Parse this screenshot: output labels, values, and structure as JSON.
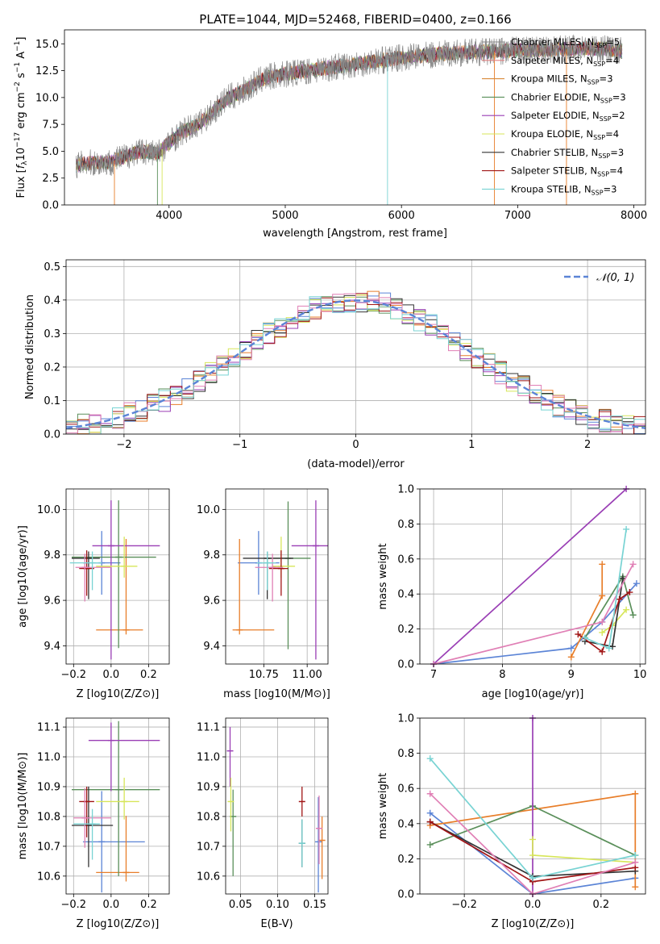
{
  "figure_title": "PLATE=1044, MJD=52468, FIBERID=0400, z=0.166",
  "series_colors": [
    "#5b84d6",
    "#e87e2a",
    "#5a8f5a",
    "#9a3fb5",
    "#d7e65a",
    "#333333",
    "#a01515",
    "#e07fb5",
    "#78d3d3"
  ],
  "chart_data": [
    {
      "id": "spectrum",
      "type": "line",
      "xlabel": "wavelength [Angstrom, rest frame]",
      "ylabel_parts": [
        "Flux [",
        "f",
        "λ",
        "10",
        "−17",
        " erg cm",
        "−2",
        " s",
        "−1",
        " A",
        "−1",
        "]"
      ],
      "xlim": [
        3100,
        8100
      ],
      "ylim": [
        0,
        16.3
      ],
      "xticks": [
        4000,
        5000,
        6000,
        7000,
        8000
      ],
      "yticks": [
        0.0,
        2.5,
        5.0,
        7.5,
        10.0,
        12.5,
        15.0
      ],
      "grid": false,
      "legend_position": "top-right",
      "data_curve": {
        "wavelength": [
          3200,
          3300,
          3400,
          3500,
          3600,
          3700,
          3800,
          3900,
          4000,
          4100,
          4200,
          4300,
          4400,
          4500,
          4600,
          4700,
          4800,
          4900,
          5000,
          5200,
          5400,
          5600,
          5800,
          6000,
          6200,
          6400,
          6600,
          6800,
          7000,
          7200,
          7400,
          7600,
          7800,
          7900
        ],
        "flux": [
          3.7,
          3.9,
          3.9,
          4.0,
          4.4,
          4.9,
          5.0,
          4.8,
          5.8,
          6.7,
          7.2,
          7.9,
          8.9,
          9.9,
          10.4,
          11.0,
          11.7,
          12.0,
          12.2,
          12.5,
          12.8,
          13.1,
          13.4,
          13.7,
          13.9,
          14.1,
          14.2,
          14.3,
          14.4,
          14.4,
          14.5,
          14.6,
          14.5,
          14.3
        ]
      },
      "legend": [
        {
          "label": "Chabrier MILES",
          "n": "5"
        },
        {
          "label": "Salpeter MILES",
          "n": "4"
        },
        {
          "label": "Kroupa MILES",
          "n": "3"
        },
        {
          "label": "Chabrier ELODIE",
          "n": "3"
        },
        {
          "label": "Salpeter ELODIE",
          "n": "2"
        },
        {
          "label": "Kroupa ELODIE",
          "n": "4"
        },
        {
          "label": "Chabrier STELIB",
          "n": "3"
        },
        {
          "label": "Salpeter STELIB",
          "n": "4"
        },
        {
          "label": "Kroupa STELIB",
          "n": "3"
        }
      ],
      "legend_colors": [
        "#888888",
        "#e07f7f",
        "#d98a3a",
        "#5a8f5a",
        "#9a3fb5",
        "#d7e65a",
        "#333333",
        "#a01515",
        "#78d3d3"
      ],
      "n_sub_prefix": "N",
      "n_sub": "SSP"
    },
    {
      "id": "residual-hist",
      "type": "histogram",
      "xlabel": "(data-model)/error",
      "ylabel": "Normed distribution",
      "xlim": [
        -2.5,
        2.5
      ],
      "ylim": [
        0,
        0.52
      ],
      "xticks": [
        -2,
        -1,
        0,
        1,
        2
      ],
      "xtick_labels": [
        "−2",
        "−1",
        "0",
        "1",
        "2"
      ],
      "yticks": [
        0.0,
        0.1,
        0.2,
        0.3,
        0.4,
        0.5
      ],
      "grid": true,
      "legend": "𝒩(0, 1)",
      "legend_position": "top-right",
      "bin_width": 0.1
    },
    {
      "id": "age-vs-z",
      "type": "errorbar",
      "xlabel": "Z [log10(Z/Z⊙)]",
      "ylabel": "age  [log10(age/yr)]",
      "xlim": [
        -0.24,
        0.31
      ],
      "ylim": [
        9.32,
        10.09
      ],
      "xticks": [
        -0.2,
        0.0,
        0.2
      ],
      "xtick_labels": [
        "−0.2",
        "0.0",
        "0.2"
      ],
      "yticks": [
        9.4,
        9.6,
        9.8,
        10.0
      ],
      "points": [
        {
          "x": -0.05,
          "xerr": [
            0.1,
            0.1
          ],
          "y": 9.765,
          "yerr": [
            0.14,
            0.14
          ],
          "color": "#5b84d6"
        },
        {
          "x": 0.08,
          "xerr": [
            0.16,
            0.09
          ],
          "y": 9.47,
          "yerr": [
            0.02,
            0.4
          ],
          "color": "#e87e2a"
        },
        {
          "x": 0.04,
          "xerr": [
            0.25,
            0.2
          ],
          "y": 9.79,
          "yerr": [
            0.4,
            0.25
          ],
          "color": "#5a8f5a"
        },
        {
          "x": 0.0,
          "xerr": [
            0.1,
            0.26
          ],
          "y": 9.84,
          "yerr": [
            0.5,
            0.2
          ],
          "color": "#9a3fb5"
        },
        {
          "x": 0.07,
          "xerr": [
            0.15,
            0.07
          ],
          "y": 9.75,
          "yerr": [
            0.05,
            0.13
          ],
          "color": "#d7e65a"
        },
        {
          "x": -0.12,
          "xerr": [
            0.09,
            0.06
          ],
          "y": 9.785,
          "yerr": [
            0.18,
            0.03
          ],
          "color": "#333333"
        },
        {
          "x": -0.13,
          "xerr": [
            0.04,
            0.04
          ],
          "y": 9.74,
          "yerr": [
            0.12,
            0.08
          ],
          "color": "#a01515"
        },
        {
          "x": -0.14,
          "xerr": [
            0.05,
            0.14
          ],
          "y": 9.745,
          "yerr": [
            0.15,
            0.06
          ],
          "color": "#e07fb5"
        },
        {
          "x": -0.1,
          "xerr": [
            0.12,
            0.05
          ],
          "y": 9.765,
          "yerr": [
            0.12,
            0.05
          ],
          "color": "#78d3d3"
        }
      ]
    },
    {
      "id": "age-vs-mass",
      "type": "errorbar",
      "xlabel": "mass [log10(M/M⊙)]",
      "ylabel": "",
      "xlim": [
        10.53,
        11.12
      ],
      "ylim": [
        9.32,
        10.09
      ],
      "xticks": [
        10.75,
        11.0
      ],
      "xtick_labels": [
        "10.75",
        "11.00"
      ],
      "yticks": [
        9.4,
        9.6,
        9.8,
        10.0
      ],
      "points": [
        {
          "x": 10.72,
          "xerr": [
            0.12,
            0.12
          ],
          "y": 9.765,
          "yerr": [
            0.14,
            0.14
          ],
          "color": "#5b84d6"
        },
        {
          "x": 10.61,
          "xerr": [
            0.04,
            0.2
          ],
          "y": 9.47,
          "yerr": [
            0.02,
            0.4
          ],
          "color": "#e87e2a"
        },
        {
          "x": 10.89,
          "xerr": [
            0.12,
            0.13
          ],
          "y": 9.785,
          "yerr": [
            0.4,
            0.25
          ],
          "color": "#5a8f5a"
        },
        {
          "x": 11.05,
          "xerr": [
            0.14,
            0.07
          ],
          "y": 9.84,
          "yerr": [
            0.5,
            0.2
          ],
          "color": "#9a3fb5"
        },
        {
          "x": 10.85,
          "xerr": [
            0.05,
            0.08
          ],
          "y": 9.75,
          "yerr": [
            0.05,
            0.13
          ],
          "color": "#d7e65a"
        },
        {
          "x": 10.77,
          "xerr": [
            0.14,
            0.15
          ],
          "y": 9.785,
          "yerr": [
            0.18,
            0.03
          ],
          "color": "#333333"
        },
        {
          "x": 10.85,
          "xerr": [
            0.07,
            0.04
          ],
          "y": 9.74,
          "yerr": [
            0.12,
            0.08
          ],
          "color": "#a01515"
        },
        {
          "x": 10.8,
          "xerr": [
            0.1,
            0.06
          ],
          "y": 9.745,
          "yerr": [
            0.15,
            0.06
          ],
          "color": "#e07fb5"
        },
        {
          "x": 10.77,
          "xerr": [
            0.06,
            0.05
          ],
          "y": 9.765,
          "yerr": [
            0.12,
            0.05
          ],
          "color": "#78d3d3"
        }
      ]
    },
    {
      "id": "weight-vs-age",
      "type": "line",
      "xlabel": "age  [log10(age/yr)]",
      "ylabel": "mass weight",
      "xlim": [
        6.8,
        10.08
      ],
      "ylim": [
        0,
        1.0
      ],
      "xticks": [
        7,
        8,
        9,
        10
      ],
      "yticks": [
        0.0,
        0.2,
        0.4,
        0.6,
        0.8,
        1.0
      ],
      "series": [
        {
          "x": [
            7.0,
            9.0,
            9.45,
            9.95
          ],
          "y": [
            0.0,
            0.09,
            0.24,
            0.46
          ],
          "color": "#5b84d6",
          "marker": "+"
        },
        {
          "x": [
            9.0,
            9.45,
            9.45
          ],
          "y": [
            0.04,
            0.39,
            0.57
          ],
          "color": "#e87e2a",
          "marker": "+"
        },
        {
          "x": [
            9.2,
            9.75,
            9.9
          ],
          "y": [
            0.15,
            0.5,
            0.28
          ],
          "color": "#5a8f5a",
          "marker": "+"
        },
        {
          "x": [
            7.0,
            9.8
          ],
          "y": [
            0.0,
            1.0
          ],
          "color": "#9a3fb5",
          "marker": "+"
        },
        {
          "x": [
            9.45,
            9.6,
            9.8
          ],
          "y": [
            0.18,
            0.22,
            0.31
          ],
          "color": "#d7e65a",
          "marker": "+"
        },
        {
          "x": [
            9.2,
            9.6,
            9.75
          ],
          "y": [
            0.13,
            0.1,
            0.49
          ],
          "color": "#333333",
          "marker": "+"
        },
        {
          "x": [
            9.1,
            9.45,
            9.7,
            9.85
          ],
          "y": [
            0.17,
            0.07,
            0.37,
            0.41
          ],
          "color": "#a01515",
          "marker": "+"
        },
        {
          "x": [
            7.0,
            9.45,
            9.9
          ],
          "y": [
            0.0,
            0.24,
            0.57
          ],
          "color": "#e07fb5",
          "marker": "+"
        },
        {
          "x": [
            9.2,
            9.55,
            9.8
          ],
          "y": [
            0.15,
            0.09,
            0.77
          ],
          "color": "#78d3d3",
          "marker": "+"
        }
      ]
    },
    {
      "id": "mass-vs-z",
      "type": "errorbar",
      "xlabel": "Z [log10(Z/Z⊙)]",
      "ylabel": "mass [log10(M/M⊙)]",
      "xlim": [
        -0.24,
        0.31
      ],
      "ylim": [
        10.54,
        11.13
      ],
      "xticks": [
        -0.2,
        0.0,
        0.2
      ],
      "xtick_labels": [
        "−0.2",
        "0.0",
        "0.2"
      ],
      "yticks": [
        10.6,
        10.7,
        10.8,
        10.9,
        11.0,
        11.1
      ],
      "points": [
        {
          "x": -0.05,
          "xerr": [
            0.1,
            0.23
          ],
          "y": 10.715,
          "yerr": [
            0.17,
            0.17
          ],
          "color": "#5b84d6"
        },
        {
          "x": 0.08,
          "xerr": [
            0.16,
            0.07
          ],
          "y": 10.612,
          "yerr": [
            0.03,
            0.19
          ],
          "color": "#e87e2a"
        },
        {
          "x": 0.04,
          "xerr": [
            0.25,
            0.22
          ],
          "y": 10.89,
          "yerr": [
            0.29,
            0.23
          ],
          "color": "#5a8f5a"
        },
        {
          "x": 0.0,
          "xerr": [
            0.12,
            0.26
          ],
          "y": 11.055,
          "yerr": [
            0.17,
            0.06
          ],
          "color": "#9a3fb5"
        },
        {
          "x": 0.07,
          "xerr": [
            0.15,
            0.08
          ],
          "y": 10.85,
          "yerr": [
            0.06,
            0.08
          ],
          "color": "#d7e65a"
        },
        {
          "x": -0.12,
          "xerr": [
            0.09,
            0.13
          ],
          "y": 10.77,
          "yerr": [
            0.14,
            0.13
          ],
          "color": "#333333"
        },
        {
          "x": -0.13,
          "xerr": [
            0.04,
            0.04
          ],
          "y": 10.85,
          "yerr": [
            0.12,
            0.05
          ],
          "color": "#a01515"
        },
        {
          "x": -0.14,
          "xerr": [
            0.06,
            0.14
          ],
          "y": 10.795,
          "yerr": [
            0.1,
            0.1
          ],
          "color": "#e07fb5"
        },
        {
          "x": -0.1,
          "xerr": [
            0.1,
            0.04
          ],
          "y": 10.775,
          "yerr": [
            0.12,
            0.05
          ],
          "color": "#78d3d3"
        }
      ]
    },
    {
      "id": "mass-vs-ebv",
      "type": "errorbar",
      "xlabel": "E(B-V)",
      "ylabel": "",
      "xlim": [
        0.03,
        0.168
      ],
      "ylim": [
        10.54,
        11.13
      ],
      "xticks": [
        0.05,
        0.1,
        0.15
      ],
      "xtick_labels": [
        "0.05",
        "0.10",
        "0.15"
      ],
      "yticks": [
        10.6,
        10.7,
        10.8,
        10.9,
        11.0,
        11.1
      ],
      "points": [
        {
          "x": 0.155,
          "xerr": [
            0,
            0
          ],
          "y": 10.715,
          "yerr": [
            0.17,
            0.15
          ],
          "color": "#5b84d6"
        },
        {
          "x": 0.16,
          "xerr": [
            0,
            0
          ],
          "y": 10.72,
          "yerr": [
            0.13,
            0.08
          ],
          "color": "#e87e2a"
        },
        {
          "x": 0.04,
          "xerr": [
            0,
            0
          ],
          "y": 10.8,
          "yerr": [
            0.2,
            0.09
          ],
          "color": "#5a8f5a"
        },
        {
          "x": 0.036,
          "xerr": [
            0,
            0
          ],
          "y": 11.02,
          "yerr": [
            0.12,
            0.08
          ],
          "color": "#9a3fb5"
        },
        {
          "x": 0.037,
          "xerr": [
            0,
            0
          ],
          "y": 10.85,
          "yerr": [
            0.1,
            0.08
          ],
          "color": "#d7e65a"
        },
        {
          "x": 0.133,
          "xerr": [
            0,
            0
          ],
          "y": 10.71,
          "yerr": [
            0.08,
            0.08
          ],
          "color": "#333333"
        },
        {
          "x": 0.133,
          "xerr": [
            0,
            0
          ],
          "y": 10.85,
          "yerr": [
            0.05,
            0.05
          ],
          "color": "#a01515"
        },
        {
          "x": 0.156,
          "xerr": [
            0,
            0
          ],
          "y": 10.76,
          "yerr": [
            0.12,
            0.11
          ],
          "color": "#e07fb5"
        },
        {
          "x": 0.133,
          "xerr": [
            0,
            0
          ],
          "y": 10.71,
          "yerr": [
            0.08,
            0.08
          ],
          "color": "#78d3d3"
        }
      ]
    },
    {
      "id": "weight-vs-z",
      "type": "line",
      "xlabel": "Z [log10(Z/Z⊙)]",
      "ylabel": "mass weight",
      "xlim": [
        -0.33,
        0.33
      ],
      "ylim": [
        0,
        1.0
      ],
      "xticks": [
        -0.2,
        0.0,
        0.2
      ],
      "xtick_labels": [
        "−0.2",
        "0.0",
        "0.2"
      ],
      "yticks": [
        0.0,
        0.2,
        0.4,
        0.6,
        0.8,
        1.0
      ],
      "series": [
        {
          "x": [
            -0.3,
            0.0,
            0.3
          ],
          "y": [
            0.46,
            0.0,
            0.09
          ],
          "color": "#5b84d6",
          "marker": "+"
        },
        {
          "x": [
            -0.3,
            0.3,
            0.3
          ],
          "y": [
            0.39,
            0.57,
            0.04
          ],
          "color": "#e87e2a",
          "marker": "+"
        },
        {
          "x": [
            -0.3,
            0.0,
            0.3
          ],
          "y": [
            0.28,
            0.5,
            0.22
          ],
          "color": "#5a8f5a",
          "marker": "+"
        },
        {
          "x": [
            0.0,
            0.0
          ],
          "y": [
            0.0,
            1.0
          ],
          "color": "#9a3fb5",
          "marker": "+"
        },
        {
          "x": [
            0.0,
            0.0,
            0.3
          ],
          "y": [
            0.31,
            0.22,
            0.18
          ],
          "color": "#d7e65a",
          "marker": "+"
        },
        {
          "x": [
            -0.3,
            0.0,
            0.3
          ],
          "y": [
            0.41,
            0.1,
            0.13
          ],
          "color": "#333333",
          "marker": "+"
        },
        {
          "x": [
            -0.3,
            0.0,
            0.3
          ],
          "y": [
            0.41,
            0.07,
            0.15
          ],
          "color": "#a01515",
          "marker": "+"
        },
        {
          "x": [
            -0.3,
            0.0,
            0.3
          ],
          "y": [
            0.57,
            0.0,
            0.18
          ],
          "color": "#e07fb5",
          "marker": "+"
        },
        {
          "x": [
            -0.3,
            0.0,
            0.3
          ],
          "y": [
            0.77,
            0.09,
            0.22
          ],
          "color": "#78d3d3",
          "marker": "+"
        }
      ]
    }
  ]
}
